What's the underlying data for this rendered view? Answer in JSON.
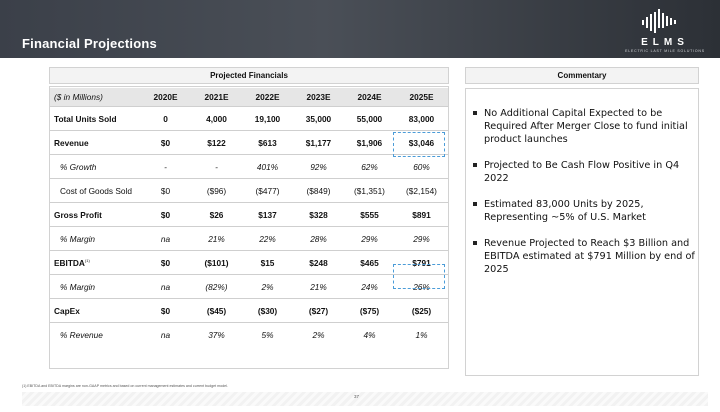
{
  "header": {
    "title": "Financial Projections",
    "logo_text": "ELMS",
    "logo_tagline": "ELECTRIC LAST MILE SOLUTIONS"
  },
  "table": {
    "title": "Projected Financials",
    "unit_label": "($ in Millions)",
    "columns": [
      "2020E",
      "2021E",
      "2022E",
      "2023E",
      "2024E",
      "2025E"
    ],
    "rows": [
      {
        "label": "Total Units Sold",
        "values": [
          "0",
          "4,000",
          "19,100",
          "35,000",
          "55,000",
          "83,000"
        ]
      },
      {
        "label": "Revenue",
        "values": [
          "$0",
          "$122",
          "$613",
          "$1,177",
          "$1,906",
          "$3,046"
        ]
      },
      {
        "label": "% Growth",
        "values": [
          "-",
          "-",
          "401%",
          "92%",
          "62%",
          "60%"
        ]
      },
      {
        "label": "Cost of Goods Sold",
        "values": [
          "$0",
          "($96)",
          "($477)",
          "($849)",
          "($1,351)",
          "($2,154)"
        ]
      },
      {
        "label": "Gross Profit",
        "values": [
          "$0",
          "$26",
          "$137",
          "$328",
          "$555",
          "$891"
        ]
      },
      {
        "label": "% Margin",
        "values": [
          "na",
          "21%",
          "22%",
          "28%",
          "29%",
          "29%"
        ]
      },
      {
        "label": "EBITDA",
        "footnote_ref": "(1)",
        "values": [
          "$0",
          "($101)",
          "$15",
          "$248",
          "$465",
          "$791"
        ]
      },
      {
        "label": "% Margin",
        "values": [
          "na",
          "(82%)",
          "2%",
          "21%",
          "24%",
          "26%"
        ]
      },
      {
        "label": "CapEx",
        "values": [
          "$0",
          "($45)",
          "($30)",
          "($27)",
          "($75)",
          "($25)"
        ]
      },
      {
        "label": "% Revenue",
        "values": [
          "na",
          "37%",
          "5%",
          "2%",
          "4%",
          "1%"
        ]
      }
    ]
  },
  "commentary": {
    "title": "Commentary",
    "bullets": [
      "No Additional Capital Expected to be Required After Merger Close to fund initial product launches",
      "Projected to Be Cash Flow Positive in Q4 2022",
      "Estimated 83,000 Units by 2025, Representing ~5% of U.S. Market",
      "Revenue Projected to Reach $3 Billion and EBITDA estimated at $791 Million by end of 2025"
    ]
  },
  "footer": {
    "footnote": "(1)    EBITDA and EBITDA margins are non-GAAP metrics and based on current management estimates and current budget model.",
    "page_number": "37"
  },
  "colors": {
    "header_dark": "#3b4049",
    "table_header_gray": "#e6e6e6",
    "highlight_dash": "#4b9cd8"
  }
}
